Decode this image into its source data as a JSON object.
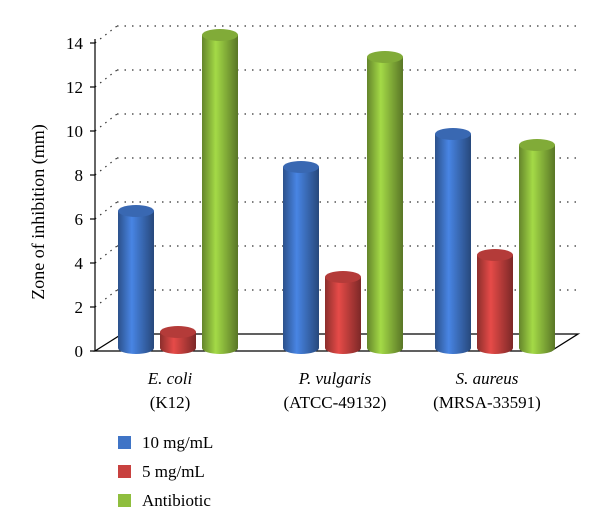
{
  "chart_data": {
    "type": "bar",
    "ylabel": "Zone of inhibition (mm)",
    "ylim": [
      0,
      14
    ],
    "yticks": [
      "0",
      "2",
      "4",
      "6",
      "8",
      "10",
      "12",
      "14"
    ],
    "categories": [
      {
        "name": "E. coli",
        "sub": "(K12)"
      },
      {
        "name": "P. vulgaris",
        "sub": "(ATCC-49132)"
      },
      {
        "name": "S. aureus",
        "sub": "(MRSA-33591)"
      }
    ],
    "series": [
      {
        "name": "10 mg/mL",
        "color": "#3f74c6",
        "values": [
          6.0,
          8.0,
          9.5
        ]
      },
      {
        "name": "5 mg/mL",
        "color": "#c8413f",
        "values": [
          0.5,
          3.0,
          4.0
        ]
      },
      {
        "name": "Antibiotic",
        "color": "#8fbe3e",
        "values": [
          14.0,
          13.0,
          9.0
        ]
      }
    ],
    "grid": true,
    "legend_position": "bottom-left"
  }
}
